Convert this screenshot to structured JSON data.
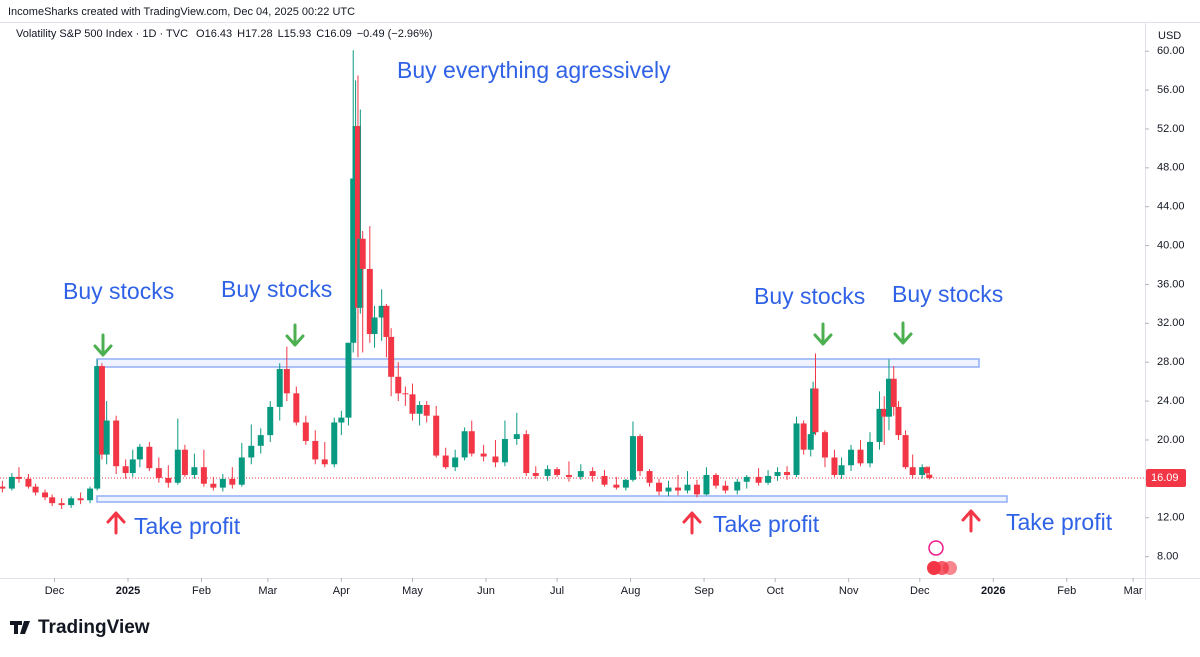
{
  "chart_data": {
    "type": "candlestick",
    "caption": "IncomeSharks created with TradingView.com, Dec 04, 2025 00:22 UTC",
    "title": "Volatility S&P 500 Index · 1D · TVC",
    "ohlc_legend": [
      {
        "label": "O",
        "value": 16.43
      },
      {
        "label": "H",
        "value": 17.28
      },
      {
        "label": "L",
        "value": 15.93
      },
      {
        "label": "C",
        "value": 16.09
      }
    ],
    "change_label": "−0.49 (−2.96%)",
    "currency": "USD",
    "last_price": 16.09,
    "brand": "TradingView",
    "up_color": "#089981",
    "down_color": "#f23645",
    "annotation_color": "#2f62e6",
    "annotations": [
      "Buy everything agressively",
      "Buy stocks",
      "Buy stocks",
      "Buy stocks",
      "Buy stocks",
      "Take profit",
      "Take profit",
      "Take profit"
    ],
    "grid": false,
    "xlim": [
      7,
      490
    ],
    "ylim": [
      5.8,
      62.9
    ],
    "xticks": [
      {
        "value": 30,
        "label": "Dec"
      },
      {
        "value": 61,
        "label": "2025"
      },
      {
        "value": 92,
        "label": "Feb"
      },
      {
        "value": 120,
        "label": "Mar"
      },
      {
        "value": 151,
        "label": "Apr"
      },
      {
        "value": 181,
        "label": "May"
      },
      {
        "value": 212,
        "label": "Jun"
      },
      {
        "value": 242,
        "label": "Jul"
      },
      {
        "value": 273,
        "label": "Aug"
      },
      {
        "value": 304,
        "label": "Sep"
      },
      {
        "value": 334,
        "label": "Oct"
      },
      {
        "value": 365,
        "label": "Nov"
      },
      {
        "value": 395,
        "label": "Dec"
      },
      {
        "value": 426,
        "label": "2026"
      },
      {
        "value": 457,
        "label": "Feb"
      },
      {
        "value": 485,
        "label": "Mar"
      }
    ],
    "yticks": [
      {
        "value": 8,
        "label": "8.00"
      },
      {
        "value": 12,
        "label": "12.00"
      },
      {
        "value": 16,
        "label": "16.00"
      },
      {
        "value": 20,
        "label": "20.00"
      },
      {
        "value": 24,
        "label": "24.00"
      },
      {
        "value": 28,
        "label": "28.00"
      },
      {
        "value": 32,
        "label": "32.00"
      },
      {
        "value": 36,
        "label": "36.00"
      },
      {
        "value": 40,
        "label": "40.00"
      },
      {
        "value": 44,
        "label": "44.00"
      },
      {
        "value": 48,
        "label": "48.00"
      },
      {
        "value": 52,
        "label": "52.00"
      },
      {
        "value": 56,
        "label": "56.00"
      },
      {
        "value": 60,
        "label": "60.00"
      }
    ],
    "x": [
      8,
      12,
      15,
      19,
      22,
      26,
      29,
      33,
      37,
      41,
      45,
      48,
      50,
      52,
      56,
      60,
      63,
      66,
      70,
      74,
      78,
      82,
      85,
      89,
      93,
      97,
      101,
      105,
      109,
      113,
      117,
      121,
      125,
      128,
      132,
      136,
      140,
      144,
      148,
      151,
      154,
      156,
      157,
      158,
      159,
      160,
      163,
      165,
      168,
      170,
      172,
      175,
      178,
      181,
      184,
      187,
      191,
      195,
      199,
      203,
      206,
      211,
      216,
      220,
      225,
      229,
      233,
      238,
      242,
      247,
      252,
      257,
      262,
      267,
      271,
      274,
      277,
      281,
      285,
      289,
      293,
      297,
      301,
      305,
      309,
      313,
      318,
      322,
      327,
      331,
      335,
      339,
      343,
      346,
      349,
      350,
      351,
      355,
      359,
      362,
      366,
      370,
      374,
      378,
      380,
      382,
      384,
      386,
      389,
      392,
      396,
      398,
      399
    ],
    "open": [
      15.2,
      15.0,
      16.2,
      16.0,
      15.2,
      14.6,
      14.1,
      13.5,
      13.3,
      14.0,
      13.8,
      15.0,
      27.6,
      18.5,
      22.0,
      17.3,
      16.6,
      18.0,
      19.3,
      17.1,
      16.1,
      15.6,
      19.0,
      16.4,
      17.2,
      15.5,
      15.1,
      16.0,
      15.4,
      18.2,
      19.4,
      20.5,
      23.4,
      27.3,
      24.8,
      21.8,
      19.9,
      18.0,
      17.5,
      21.8,
      22.3,
      30.0,
      46.9,
      52.3,
      33.6,
      40.7,
      37.6,
      30.9,
      32.6,
      33.8,
      30.6,
      26.5,
      24.8,
      24.7,
      22.7,
      23.6,
      22.5,
      18.4,
      17.2,
      18.2,
      20.9,
      18.6,
      18.3,
      17.7,
      20.1,
      20.6,
      16.6,
      16.3,
      17.0,
      16.4,
      16.2,
      16.8,
      16.3,
      15.4,
      15.1,
      15.9,
      20.4,
      16.8,
      15.6,
      14.7,
      15.1,
      14.8,
      15.4,
      14.4,
      16.4,
      15.3,
      14.8,
      15.7,
      16.2,
      15.6,
      16.3,
      16.7,
      16.4,
      21.7,
      19.0,
      20.6,
      25.3,
      20.8,
      18.2,
      16.4,
      17.4,
      19.0,
      17.6,
      19.8,
      23.2,
      22.4,
      26.3,
      23.4,
      20.5,
      17.2,
      16.4,
      17.2,
      16.43
    ],
    "high": [
      15.8,
      16.6,
      17.2,
      16.5,
      15.5,
      14.9,
      14.4,
      14.0,
      14.2,
      14.6,
      15.2,
      28.3,
      27.9,
      24.0,
      22.5,
      18.0,
      19.0,
      19.6,
      19.8,
      18.2,
      17.4,
      22.2,
      19.5,
      18.6,
      19.0,
      16.2,
      16.5,
      17.2,
      19.7,
      21.6,
      21.2,
      24.0,
      27.9,
      29.6,
      25.5,
      22.5,
      21.0,
      19.8,
      22.3,
      23.0,
      30.0,
      60.1,
      57.0,
      57.5,
      54.0,
      41.5,
      42.0,
      33.8,
      35.5,
      34.0,
      31.5,
      28.0,
      25.5,
      25.8,
      24.0,
      24.0,
      23.5,
      19.2,
      19.0,
      21.3,
      22.0,
      19.5,
      20.0,
      22.0,
      22.8,
      21.0,
      17.3,
      17.4,
      17.2,
      17.8,
      17.5,
      17.2,
      16.9,
      16.2,
      16.0,
      21.9,
      20.6,
      17.0,
      16.0,
      15.8,
      16.4,
      16.8,
      15.9,
      17.2,
      16.6,
      15.8,
      16.0,
      16.4,
      17.1,
      16.9,
      17.2,
      17.3,
      22.4,
      22.0,
      20.8,
      26.0,
      28.9,
      21.0,
      19.0,
      18.2,
      19.5,
      20.0,
      20.8,
      25.0,
      24.5,
      28.3,
      27.6,
      24.0,
      21.0,
      18.5,
      17.5,
      17.3,
      17.28
    ],
    "low": [
      14.6,
      14.8,
      15.6,
      15.0,
      14.3,
      13.8,
      13.2,
      12.9,
      13.0,
      13.4,
      13.5,
      14.8,
      18.0,
      17.5,
      16.5,
      16.0,
      16.2,
      17.2,
      16.8,
      15.6,
      15.1,
      15.4,
      16.2,
      16.0,
      15.2,
      14.8,
      14.7,
      15.0,
      15.2,
      17.5,
      18.6,
      19.8,
      22.0,
      24.0,
      21.5,
      19.5,
      17.5,
      17.2,
      17.2,
      20.5,
      21.5,
      29.0,
      36.5,
      28.5,
      33.0,
      29.0,
      30.0,
      29.5,
      30.2,
      28.5,
      24.5,
      24.0,
      23.5,
      22.0,
      21.5,
      21.8,
      18.2,
      17.0,
      16.8,
      17.9,
      18.3,
      17.8,
      17.2,
      17.3,
      19.5,
      16.3,
      16.0,
      15.8,
      16.2,
      15.7,
      15.9,
      15.7,
      15.2,
      14.9,
      14.8,
      15.7,
      16.3,
      15.2,
      14.3,
      14.2,
      14.3,
      14.5,
      14.1,
      14.3,
      15.0,
      14.5,
      14.4,
      15.0,
      15.3,
      15.4,
      15.8,
      15.9,
      16.2,
      18.5,
      18.3,
      20.0,
      20.5,
      17.2,
      16.2,
      16.0,
      16.8,
      17.3,
      17.2,
      19.0,
      19.5,
      21.0,
      22.5,
      20.0,
      17.0,
      16.0,
      16.0,
      16.1,
      15.93
    ],
    "close": [
      15.0,
      16.2,
      16.0,
      15.2,
      14.6,
      14.1,
      13.5,
      13.3,
      14.0,
      13.8,
      15.0,
      27.6,
      18.5,
      22.0,
      17.3,
      16.6,
      18.0,
      19.3,
      17.1,
      16.1,
      15.6,
      19.0,
      16.4,
      17.2,
      15.5,
      15.1,
      16.0,
      15.4,
      18.2,
      19.4,
      20.5,
      23.4,
      27.3,
      24.8,
      21.8,
      19.9,
      18.0,
      17.5,
      21.8,
      22.3,
      30.0,
      46.9,
      52.3,
      33.6,
      40.7,
      37.6,
      30.9,
      32.6,
      33.8,
      30.6,
      26.5,
      24.8,
      24.7,
      22.7,
      23.6,
      22.5,
      18.4,
      17.2,
      18.2,
      20.9,
      18.6,
      18.3,
      17.7,
      20.1,
      20.6,
      16.6,
      16.3,
      17.0,
      16.4,
      16.2,
      16.8,
      16.3,
      15.4,
      15.1,
      15.9,
      20.4,
      16.8,
      15.6,
      14.7,
      15.1,
      14.8,
      15.4,
      14.4,
      16.4,
      15.3,
      14.8,
      15.7,
      16.2,
      15.6,
      16.3,
      16.7,
      16.4,
      21.7,
      19.0,
      20.6,
      25.3,
      20.8,
      18.2,
      16.4,
      17.4,
      19.0,
      17.6,
      19.8,
      23.2,
      22.4,
      26.3,
      23.4,
      20.5,
      17.2,
      16.4,
      17.2,
      16.58,
      16.09
    ]
  }
}
